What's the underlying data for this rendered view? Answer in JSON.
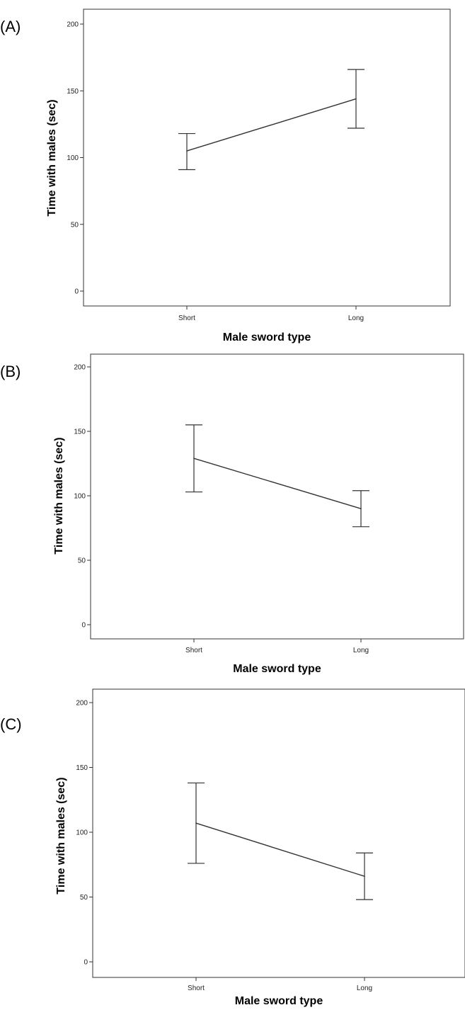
{
  "chart_data": [
    {
      "panel": "(A)",
      "type": "line",
      "categories": [
        "Short",
        "Long"
      ],
      "series": [
        {
          "values": [
            105,
            144
          ],
          "error_low": [
            91,
            122
          ],
          "error_high": [
            118,
            166
          ]
        }
      ],
      "xlabel": "Male sword type",
      "ylabel": "Time with males (sec)",
      "ylim": [
        0,
        200
      ],
      "yticks": [
        "0",
        "50",
        "100",
        "150",
        "200"
      ],
      "grid": false,
      "color": "#333333"
    },
    {
      "panel": "(B)",
      "type": "line",
      "categories": [
        "Short",
        "Long"
      ],
      "series": [
        {
          "values": [
            129,
            90
          ],
          "error_low": [
            103,
            76
          ],
          "error_high": [
            155,
            104
          ]
        }
      ],
      "xlabel": "Male sword type",
      "ylabel": "Time with males (sec)",
      "ylim": [
        0,
        200
      ],
      "yticks": [
        "0",
        "50",
        "100",
        "150",
        "200"
      ],
      "grid": false,
      "color": "#333333"
    },
    {
      "panel": "(C)",
      "type": "line",
      "categories": [
        "Short",
        "Long"
      ],
      "series": [
        {
          "values": [
            107,
            66
          ],
          "error_low": [
            76,
            48
          ],
          "error_high": [
            138,
            84
          ]
        }
      ],
      "xlabel": "Male sword type",
      "ylabel": "Time with males (sec)",
      "ylim": [
        0,
        200
      ],
      "yticks": [
        "0",
        "50",
        "100",
        "150",
        "200"
      ],
      "grid": false,
      "color": "#333333"
    }
  ]
}
